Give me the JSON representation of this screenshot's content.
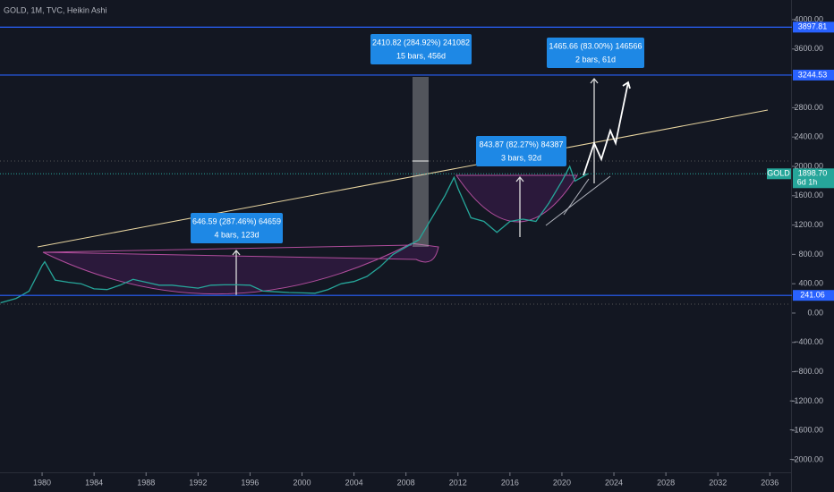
{
  "chart_data": {
    "type": "line",
    "title": "GOLD, 1M, TVC, Heikin Ashi",
    "x": [
      1976.8,
      1978,
      1979,
      1980,
      1980.2,
      1981,
      1982,
      1983,
      1984,
      1985,
      1986,
      1987,
      1988,
      1989,
      1990,
      1991,
      1992,
      1993,
      1994,
      1995,
      1996,
      1997,
      1998,
      1999,
      2000,
      2001,
      2002,
      2003,
      2004,
      2005,
      2006,
      2007,
      2008,
      2009,
      2010,
      2011,
      2011.7,
      2012,
      2013,
      2014,
      2015,
      2016,
      2017,
      2018,
      2019,
      2020,
      2020.6,
      2021,
      2022
    ],
    "series": [
      {
        "name": "GOLD",
        "color": "#26a69a",
        "values": [
          140,
          200,
          300,
          650,
          700,
          450,
          420,
          400,
          330,
          320,
          380,
          460,
          420,
          380,
          380,
          360,
          340,
          380,
          385,
          385,
          380,
          300,
          290,
          280,
          275,
          270,
          320,
          400,
          430,
          500,
          630,
          800,
          900,
          1000,
          1300,
          1600,
          1850,
          1700,
          1300,
          1250,
          1100,
          1250,
          1280,
          1250,
          1500,
          1800,
          2000,
          1800,
          1900
        ]
      }
    ],
    "xlim": [
      1976.76,
      2037.7
    ],
    "ylim": [
      -2171,
      4268
    ],
    "xticks": [
      1980,
      1984,
      1988,
      1992,
      1996,
      2000,
      2004,
      2008,
      2012,
      2016,
      2020,
      2024,
      2028,
      2032,
      2036
    ],
    "yticks": [
      {
        "value": 4000,
        "label": "4000.00"
      },
      {
        "value": 3600,
        "label": "3600.00"
      },
      {
        "value": 2800,
        "label": "2800.00"
      },
      {
        "value": 2400,
        "label": "2400.00"
      },
      {
        "value": 2000,
        "label": "2000.00"
      },
      {
        "value": 1600,
        "label": "1600.00"
      },
      {
        "value": 1200,
        "label": "1200.00"
      },
      {
        "value": 800,
        "label": "800.00"
      },
      {
        "value": 400,
        "label": "400.00"
      },
      {
        "value": 0,
        "label": "0.00"
      },
      {
        "value": -400,
        "label": "−400.00"
      },
      {
        "value": -800,
        "label": "−800.00"
      },
      {
        "value": -1200,
        "label": "−1200.00"
      },
      {
        "value": -1600,
        "label": "−1600.00"
      },
      {
        "value": -2000,
        "label": "−2000.00"
      }
    ],
    "price_lines": [
      3897.81,
      3244.53,
      241.06
    ],
    "last_price": {
      "value": 1898.7,
      "label": "1898.70"
    },
    "countdown": "6d 1h",
    "annotations": [
      [
        "646.59 (287.46%) 64659",
        "4 bars, 123d"
      ],
      [
        "2410.82 (284.92%) 241082",
        "15 bars, 456d"
      ],
      [
        "843.87 (82.27%) 84387",
        "3 bars, 92d"
      ],
      [
        "1465.66 (83.00%) 146566",
        "2 bars, 61d"
      ]
    ]
  }
}
